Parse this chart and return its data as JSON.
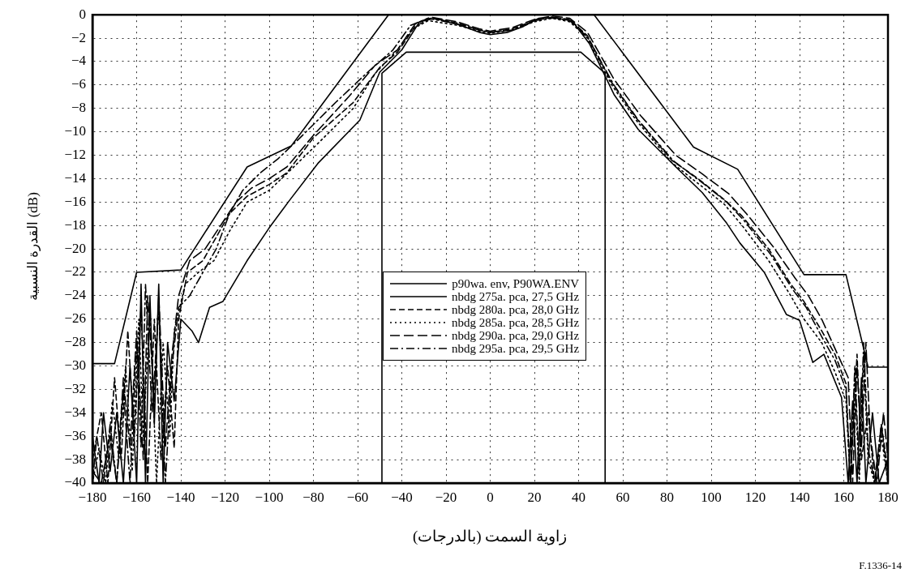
{
  "chart_data": {
    "type": "line",
    "xlabel": "زاوية السمت (بالدرجات)",
    "ylabel": "القدرة النسبية (dB)",
    "annotations": [
      "F.1336-14"
    ],
    "xlim": [
      -180,
      180
    ],
    "xticks": [
      -180,
      -160,
      -140,
      -120,
      -100,
      -80,
      -60,
      -40,
      -20,
      0,
      20,
      40,
      60,
      80,
      100,
      120,
      140,
      160,
      180
    ],
    "ylim": [
      -40,
      0
    ],
    "yticks": [
      -40,
      -38,
      -36,
      -34,
      -32,
      -30,
      -28,
      -26,
      -24,
      -22,
      -20,
      -18,
      -16,
      -14,
      -12,
      -10,
      -8,
      -6,
      -4,
      -2,
      0
    ],
    "grid": true,
    "legend": "bottom",
    "marker": "none",
    "series": [
      {
        "name": "p90wa. env, P90WA.ENV",
        "color": "#000000",
        "line_style": "solid",
        "x": [
          -180,
          -170,
          -160,
          -140,
          -110,
          -90,
          -46,
          47,
          92,
          112,
          142,
          161,
          171,
          180,
          null,
          -49,
          -49,
          -38,
          41,
          52,
          52
        ],
        "values": [
          -29.8,
          -29.8,
          -22,
          -21.8,
          -13,
          -11.2,
          0,
          0,
          -11.3,
          -13.2,
          -22.2,
          -22.2,
          -30.1,
          -30.1,
          null,
          -40,
          -5,
          -3.2,
          -3.2,
          -5,
          -40
        ]
      },
      {
        "name": "nbdg 275a. pca, 27,5 GHz",
        "color": "#000000",
        "line_style": "solid",
        "x": [
          -180,
          -177,
          -175,
          -172,
          -169,
          -166,
          -163,
          -160,
          -158,
          -156,
          -154,
          -152,
          -150,
          -148,
          -146,
          -143,
          -140,
          -135,
          -132,
          -127,
          -121,
          -110,
          -100,
          -91,
          -78,
          -59,
          -50,
          -40,
          -32,
          -25,
          -15,
          -5,
          0,
          8,
          15,
          22,
          30,
          37,
          45,
          56,
          67,
          84,
          96,
          107,
          113,
          124,
          134,
          140,
          146,
          151,
          159,
          162,
          164,
          166,
          168,
          170,
          173,
          176,
          180
        ],
        "values": [
          -36,
          -40,
          -34,
          -39,
          -34,
          -40,
          -30,
          -40,
          -23,
          -40,
          -24,
          -35,
          -23,
          -40,
          -28,
          -33,
          -26,
          -27,
          -28,
          -25,
          -24.5,
          -21,
          -18.2,
          -15.9,
          -12.7,
          -9,
          -4.9,
          -3,
          -0.6,
          -0.3,
          -0.8,
          -1.5,
          -1.7,
          -1.5,
          -1,
          -0.3,
          -0.3,
          -0.5,
          -2.5,
          -6.8,
          -9.8,
          -13,
          -15.2,
          -17.8,
          -19.5,
          -22,
          -25.6,
          -26.1,
          -29.7,
          -29,
          -32.7,
          -40,
          -33,
          -40,
          -31,
          -40,
          -34,
          -40,
          -38
        ]
      },
      {
        "name": "nbdg 280a. pca, 28,0 GHz",
        "color": "#000000",
        "line_style": "dashed",
        "x": [
          -180,
          -176,
          -173,
          -170,
          -167,
          -164,
          -161,
          -158,
          -155,
          -152,
          -149,
          -146,
          -143,
          -141,
          -137,
          -130,
          -124,
          -118,
          -110,
          -100,
          -92,
          -80,
          -62,
          -50,
          -42,
          -34,
          -27,
          -15,
          -5,
          0,
          10,
          20,
          28,
          36,
          44,
          55,
          66,
          82,
          94,
          106,
          114,
          126,
          136,
          142,
          150,
          156,
          161,
          163,
          166,
          168,
          171,
          174,
          177,
          180
        ],
        "values": [
          -38,
          -34,
          -40,
          -31,
          -38,
          -27,
          -36,
          -25,
          -40,
          -26,
          -38,
          -30,
          -37,
          -26,
          -22,
          -21,
          -19,
          -17,
          -15.5,
          -14.5,
          -13.5,
          -10.5,
          -7.5,
          -4.5,
          -3.2,
          -1,
          -0.3,
          -0.7,
          -1.3,
          -1.5,
          -1.2,
          -0.5,
          -0.2,
          -0.4,
          -1.8,
          -5.8,
          -8.8,
          -12.4,
          -14,
          -15.8,
          -17.2,
          -20,
          -23,
          -24.5,
          -27,
          -29,
          -31.5,
          -40,
          -29,
          -38,
          -34,
          -40,
          -35,
          -39
        ]
      },
      {
        "name": "nbdg 285a. pca, 28,5 GHz",
        "color": "#000000",
        "line_style": "dotted",
        "x": [
          -180,
          -177,
          -174,
          -171,
          -168,
          -165,
          -162,
          -159,
          -157,
          -154,
          -151,
          -148,
          -145,
          -143,
          -138,
          -132,
          -125,
          -118,
          -110,
          -100,
          -90,
          -78,
          -62,
          -52,
          -42,
          -35,
          -28,
          -15,
          -5,
          0,
          10,
          20,
          28,
          36,
          44,
          55,
          66,
          82,
          94,
          106,
          114,
          126,
          136,
          142,
          150,
          156,
          161,
          163,
          165,
          167,
          169,
          171,
          174,
          177,
          180
        ],
        "values": [
          -40,
          -37,
          -40,
          -33,
          -38,
          -30,
          -39,
          -26,
          -36,
          -25,
          -40,
          -28,
          -36,
          -27,
          -23,
          -22,
          -21,
          -18.5,
          -16,
          -15,
          -13.2,
          -11,
          -8,
          -5,
          -3,
          -1.2,
          -0.5,
          -0.9,
          -1.4,
          -1.6,
          -1.3,
          -0.6,
          -0.3,
          -0.6,
          -2,
          -6,
          -9,
          -12.6,
          -14.4,
          -16.2,
          -18,
          -21,
          -24,
          -26,
          -28,
          -30.5,
          -33,
          -40,
          -31,
          -40,
          -29,
          -38,
          -40,
          -36,
          -40
        ]
      },
      {
        "name": "nbdg 290a. pca, 29,0 GHz",
        "color": "#000000",
        "line_style": "longdash",
        "x": [
          -180,
          -176,
          -172,
          -169,
          -166,
          -163,
          -160,
          -157,
          -155,
          -152,
          -150,
          -147,
          -144,
          -141,
          -136,
          -129,
          -122,
          -115,
          -108,
          -100,
          -92,
          -80,
          -64,
          -52,
          -42,
          -34,
          -27,
          -15,
          -5,
          0,
          10,
          20,
          28,
          36,
          44,
          56,
          68,
          84,
          96,
          108,
          116,
          128,
          138,
          144,
          150,
          156,
          162,
          164,
          166,
          168,
          170,
          172,
          175,
          178,
          180
        ],
        "values": [
          -39,
          -40,
          -36,
          -40,
          -31,
          -37,
          -27,
          -38,
          -24,
          -33,
          -24,
          -37,
          -29,
          -24,
          -21,
          -20,
          -18,
          -16,
          -14.8,
          -14,
          -13,
          -10.3,
          -7,
          -4.3,
          -3,
          -0.8,
          -0.2,
          -0.6,
          -1.2,
          -1.4,
          -1.1,
          -0.4,
          -0.1,
          -0.3,
          -1.5,
          -5.5,
          -8.6,
          -12,
          -13.6,
          -15.3,
          -17,
          -19.8,
          -22.5,
          -24,
          -26,
          -28.5,
          -31,
          -40,
          -30,
          -37,
          -28,
          -36,
          -40,
          -34,
          -38
        ]
      },
      {
        "name": "nbdg 295a. pca, 29,5 GHz",
        "color": "#000000",
        "line_style": "dashdot",
        "x": [
          -180,
          -178,
          -175,
          -172,
          -169,
          -166,
          -163,
          -160,
          -158,
          -156,
          -153,
          -150,
          -147,
          -144,
          -141,
          -136,
          -130,
          -124,
          -118,
          -112,
          -104,
          -96,
          -86,
          -70,
          -56,
          -44,
          -36,
          -28,
          -15,
          -5,
          0,
          10,
          20,
          28,
          36,
          44,
          56,
          67,
          83,
          95,
          107,
          115,
          127,
          137,
          143,
          150,
          156,
          161,
          163,
          165,
          167,
          169,
          171,
          174,
          177,
          180
        ],
        "values": [
          -40,
          -36,
          -40,
          -35,
          -40,
          -32,
          -40,
          -28,
          -37,
          -23,
          -34,
          -25,
          -40,
          -30,
          -25,
          -24,
          -22,
          -20,
          -17,
          -15,
          -13.5,
          -12.3,
          -10.5,
          -7.5,
          -5,
          -3,
          -0.9,
          -0.3,
          -0.8,
          -1.3,
          -1.5,
          -1.3,
          -0.5,
          -0.2,
          -0.5,
          -1.9,
          -6,
          -9,
          -12.5,
          -14.2,
          -16,
          -17.6,
          -20.5,
          -23.5,
          -25,
          -27.5,
          -29.5,
          -32,
          -40,
          -30,
          -39,
          -28,
          -37,
          -40,
          -35,
          -40
        ]
      }
    ]
  }
}
